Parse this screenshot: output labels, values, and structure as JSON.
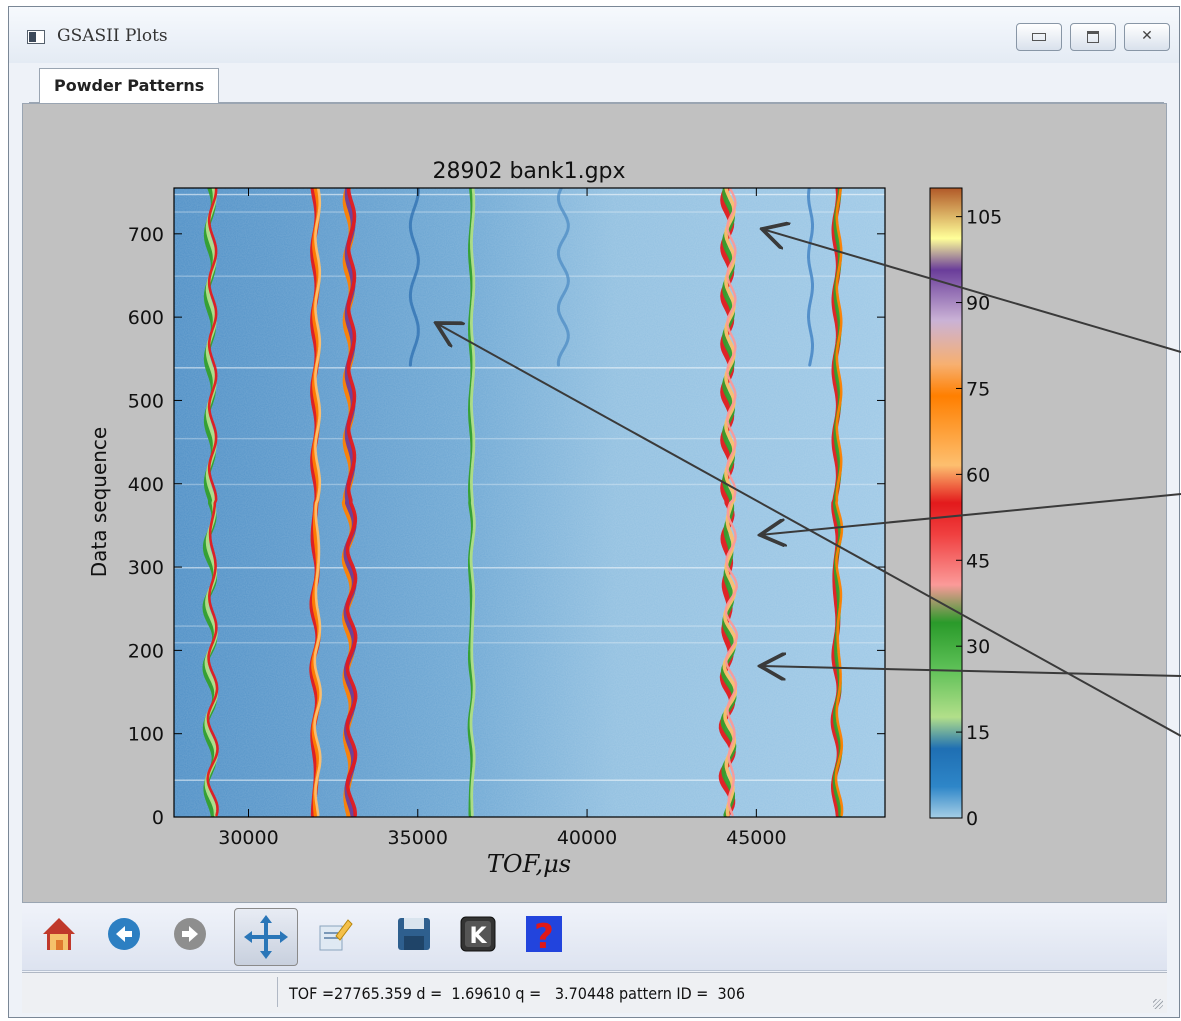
{
  "window": {
    "title": "GSASII Plots",
    "controls": {
      "minimize": "minimize",
      "maximize": "maximize",
      "close": "✕"
    }
  },
  "tabs": [
    {
      "label": "Powder Patterns",
      "active": true
    }
  ],
  "chart_data": {
    "type": "heatmap",
    "title": "28902 bank1.gpx",
    "xlabel": "TOF,μs",
    "ylabel": "Data sequence",
    "xlim": [
      27800,
      48800
    ],
    "ylim": [
      0,
      755
    ],
    "x_ticks": [
      30000,
      35000,
      40000,
      45000
    ],
    "y_ticks": [
      0,
      100,
      200,
      300,
      400,
      500,
      600,
      700
    ],
    "colorbar": {
      "min": 0,
      "max": 110,
      "ticks": [
        0,
        15,
        30,
        45,
        60,
        75,
        90,
        105
      ]
    },
    "peaks_tof": [
      28900,
      32000,
      33000,
      34900,
      36600,
      39300,
      44200,
      46600,
      47400
    ],
    "grid": false
  },
  "toolbar": {
    "tools": [
      "home-icon",
      "back-icon",
      "forward-icon",
      "pan-icon",
      "edit-icon",
      "save-icon",
      "keyboard-icon",
      "help-icon"
    ],
    "help_glyph": "?",
    "key_glyph": "K"
  },
  "status": {
    "text": "TOF =27765.359 d =  1.69610 q =   3.70448 pattern ID =  306"
  },
  "colors": {
    "plot_bg": "#c1c1c1",
    "heatmap_low": "#9cc4e2",
    "heatmap_dark": "#5a90c0"
  }
}
